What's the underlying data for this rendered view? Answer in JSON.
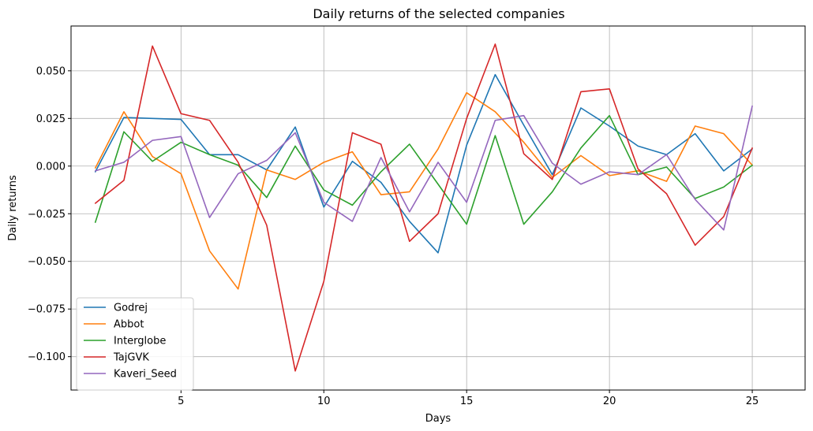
{
  "chart_data": {
    "type": "line",
    "title": "Daily returns of the selected companies",
    "xlabel": "Days",
    "ylabel": "Daily returns",
    "xlim": [
      1.15,
      26.85
    ],
    "ylim": [
      -0.1175,
      0.0735
    ],
    "xticks": [
      5,
      10,
      15,
      20,
      25
    ],
    "xtick_labels": [
      "5",
      "10",
      "15",
      "20",
      "25"
    ],
    "yticks": [
      -0.1,
      -0.075,
      -0.05,
      -0.025,
      0.0,
      0.025,
      0.05
    ],
    "ytick_labels": [
      "−0.100",
      "−0.075",
      "−0.050",
      "−0.025",
      "0.000",
      "0.025",
      "0.050"
    ],
    "grid": true,
    "legend_position": "lower-left",
    "x": [
      2,
      3,
      4,
      5,
      6,
      7,
      8,
      9,
      10,
      11,
      12,
      13,
      14,
      15,
      16,
      17,
      18,
      19,
      20,
      21,
      22,
      23,
      24,
      25
    ],
    "series": [
      {
        "name": "Godrej",
        "color": "#1f77b4",
        "values": [
          -0.003,
          0.0255,
          0.025,
          0.0245,
          0.006,
          0.006,
          -0.002,
          0.0205,
          -0.0215,
          0.0025,
          -0.0085,
          -0.029,
          -0.0455,
          0.011,
          0.048,
          0.0215,
          -0.0045,
          0.0305,
          0.021,
          0.0105,
          0.006,
          0.017,
          -0.0025,
          0.009
        ]
      },
      {
        "name": "Abbot",
        "color": "#ff7f0e",
        "values": [
          -0.001,
          0.0285,
          0.005,
          -0.004,
          -0.0445,
          -0.0645,
          -0.002,
          -0.007,
          0.002,
          0.0075,
          -0.015,
          -0.0135,
          0.009,
          0.0385,
          0.0285,
          0.0125,
          -0.006,
          0.0055,
          -0.005,
          -0.0025,
          -0.008,
          0.021,
          0.017,
          0.0005
        ]
      },
      {
        "name": "Interglobe",
        "color": "#2ca02c",
        "values": [
          -0.0295,
          0.018,
          0.0025,
          0.0125,
          0.006,
          0.0005,
          -0.0165,
          0.0105,
          -0.0125,
          -0.0205,
          -0.003,
          0.0115,
          -0.0095,
          -0.0305,
          0.016,
          -0.0305,
          -0.0135,
          0.0095,
          0.0265,
          -0.0045,
          -0.0005,
          -0.017,
          -0.011,
          0.0005
        ]
      },
      {
        "name": "TajGVK",
        "color": "#d62728",
        "values": [
          -0.0195,
          -0.0075,
          0.063,
          0.0275,
          0.024,
          0.002,
          -0.031,
          -0.1075,
          -0.0605,
          0.0175,
          0.0115,
          -0.0395,
          -0.025,
          0.025,
          0.064,
          0.0065,
          -0.007,
          0.039,
          0.0405,
          -0.0015,
          -0.0145,
          -0.0415,
          -0.0265,
          0.0095
        ]
      },
      {
        "name": "Kaveri_Seed",
        "color": "#9467bd",
        "values": [
          -0.0025,
          0.002,
          0.0135,
          0.0155,
          -0.027,
          -0.004,
          0.003,
          0.0175,
          -0.019,
          -0.029,
          0.0045,
          -0.024,
          0.002,
          -0.019,
          0.024,
          0.0265,
          0.0015,
          -0.0095,
          -0.003,
          -0.0045,
          0.006,
          -0.0175,
          -0.0335,
          0.0315
        ]
      }
    ]
  }
}
